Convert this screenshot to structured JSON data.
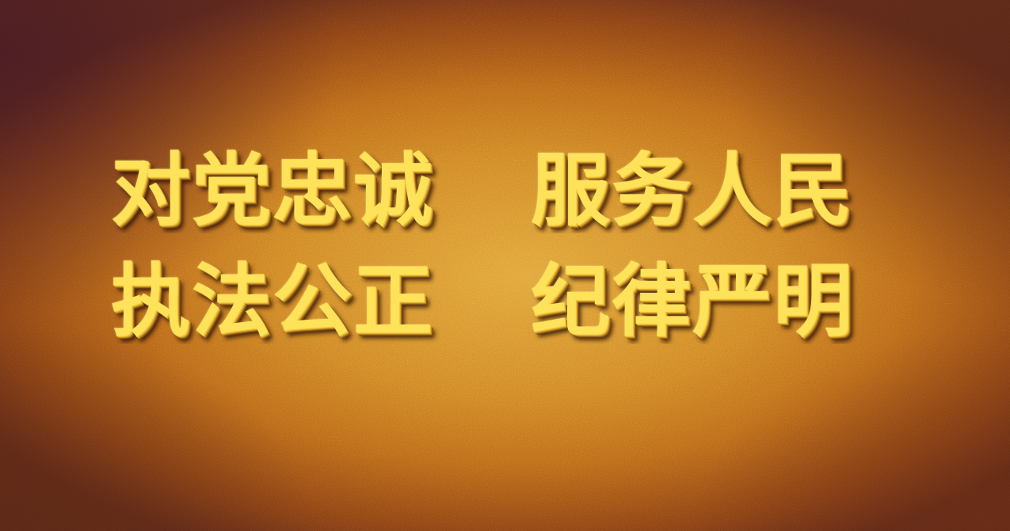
{
  "motto": {
    "line1": {
      "left": "对党忠诚",
      "right": "服务人民"
    },
    "line2": {
      "left": "执法公正",
      "right": "纪律严明"
    }
  },
  "colors": {
    "text": "#fde25a",
    "background_center": "#e0a13a",
    "background_edge": "#5a2818"
  }
}
